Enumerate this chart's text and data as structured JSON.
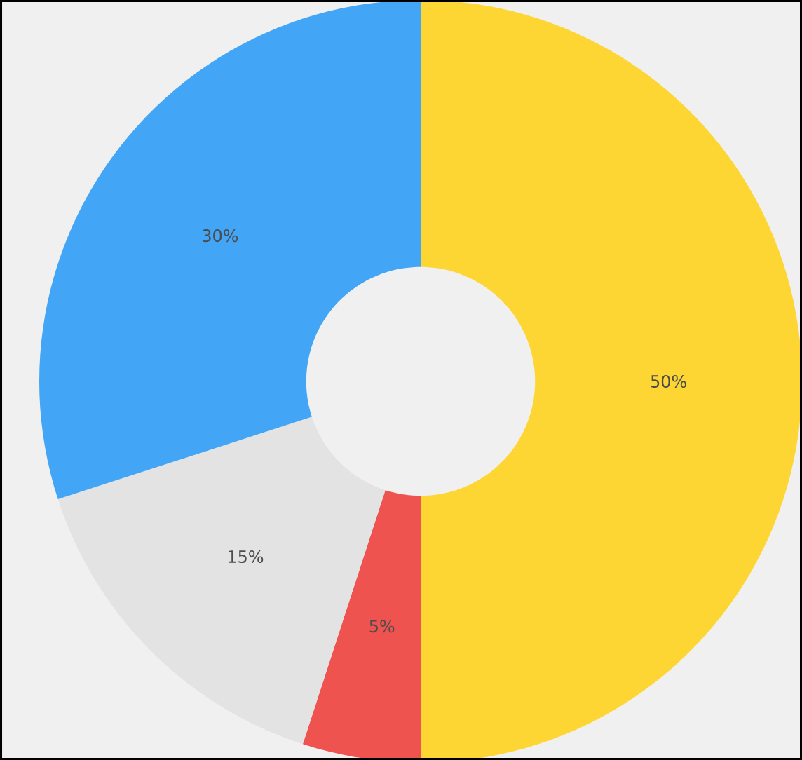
{
  "chart_data": {
    "type": "donut",
    "categories": [
      null,
      null,
      null,
      null
    ],
    "values": [
      50,
      5,
      15,
      30
    ],
    "colors": [
      "#fdd633",
      "#ee5350",
      "#e3e3e3",
      "#42a5f5"
    ],
    "value_labels": [
      "50%",
      "5%",
      "15%",
      "30%"
    ]
  }
}
